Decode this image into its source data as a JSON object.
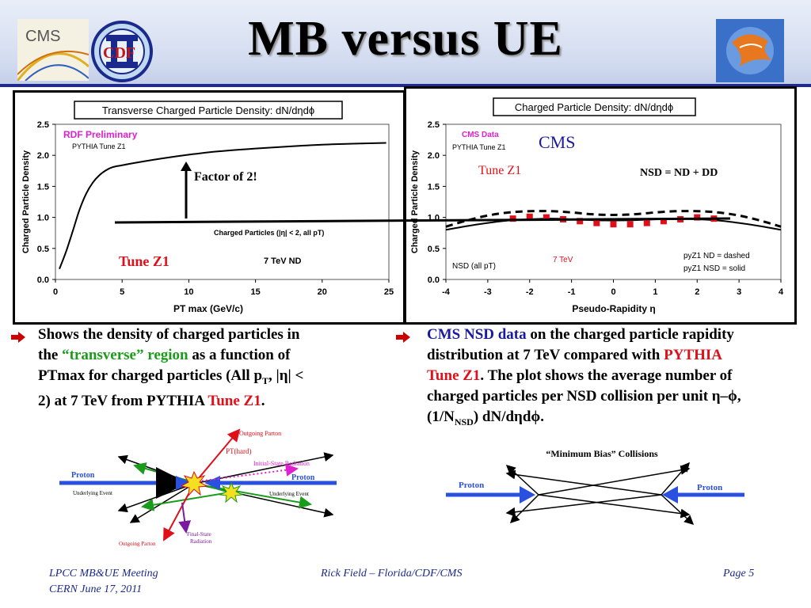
{
  "slide": {
    "title": "MB versus UE",
    "logos": {
      "cms": "CMS",
      "cdf": "CDF"
    }
  },
  "left_chart": {
    "type": "line",
    "title": "Transverse Charged Particle Density: dN/dηdϕ",
    "xlabel": "PT max (GeV/c)",
    "ylabel": "Charged Particle Density",
    "xlim": [
      0,
      25
    ],
    "ylim": [
      0.0,
      2.5
    ],
    "xticks": [
      "0",
      "5",
      "10",
      "15",
      "20",
      "25"
    ],
    "yticks": [
      "0.0",
      "0.5",
      "1.0",
      "1.5",
      "2.0",
      "2.5"
    ],
    "annotation_preliminary": "RDF Preliminary",
    "annotation_tune": "PYTHIA Tune Z1",
    "annotation_factor": "Factor of 2!",
    "annotation_cuts": "Charged Particles (|η| < 2, all pT)",
    "annotation_tune_big": "Tune Z1",
    "annotation_energy": "7 TeV ND",
    "series": [
      {
        "values_x": [
          0.3,
          0.8,
          1.3,
          1.8,
          2.3,
          2.8,
          3.3,
          3.8,
          4.3,
          5,
          6,
          8,
          10,
          12,
          15,
          18,
          21,
          24.8
        ],
        "values_y": [
          0.17,
          0.45,
          0.78,
          1.12,
          1.38,
          1.56,
          1.68,
          1.76,
          1.81,
          1.84,
          1.88,
          1.95,
          2.01,
          2.06,
          2.11,
          2.15,
          2.18,
          2.2
        ]
      }
    ]
  },
  "right_chart": {
    "type": "line",
    "title": "Charged Particle Density: dN/dηdϕ",
    "xlabel": "Pseudo-Rapidity η",
    "ylabel": "Charged Particle Density",
    "xlim": [
      -4,
      4
    ],
    "ylim": [
      0.0,
      2.5
    ],
    "xticks": [
      "-4",
      "-3",
      "-2",
      "-1",
      "0",
      "1",
      "2",
      "3",
      "4"
    ],
    "yticks": [
      "0.0",
      "0.5",
      "1.0",
      "1.5",
      "2.0",
      "2.5"
    ],
    "annotation_cms_data": "CMS Data",
    "annotation_tune": "PYTHIA Tune Z1",
    "annotation_cms_big": "CMS",
    "annotation_tune_big": "Tune Z1",
    "annotation_nsd_def": "NSD = ND + DD",
    "annotation_nsd_pt": "NSD (all pT)",
    "annotation_energy": "7 TeV",
    "legend_dashed": "pyZ1 ND = dashed",
    "legend_solid": "pyZ1 NSD = solid",
    "series": [
      {
        "style": "solid",
        "x": [
          -4,
          -3.5,
          -3,
          -2.5,
          -2,
          -1.5,
          -1,
          -0.5,
          0,
          0.5,
          1,
          1.5,
          2,
          2.5,
          3,
          3.5,
          4
        ],
        "y": [
          0.8,
          0.86,
          0.91,
          0.95,
          0.97,
          0.98,
          0.97,
          0.955,
          0.95,
          0.955,
          0.97,
          0.98,
          0.97,
          0.95,
          0.91,
          0.86,
          0.8
        ]
      },
      {
        "style": "dashed",
        "x": [
          -4,
          -3.5,
          -3,
          -2.5,
          -2,
          -1.5,
          -1,
          -0.5,
          0,
          0.5,
          1,
          1.5,
          2,
          2.5,
          3,
          3.5,
          4
        ],
        "y": [
          0.85,
          0.95,
          1.03,
          1.08,
          1.1,
          1.1,
          1.08,
          1.05,
          1.04,
          1.05,
          1.08,
          1.1,
          1.1,
          1.08,
          1.03,
          0.95,
          0.85
        ]
      },
      {
        "style": "points",
        "x": [
          -2.4,
          -2.0,
          -1.6,
          -1.2,
          -0.8,
          -0.4,
          0,
          0.4,
          0.8,
          1.2,
          1.6,
          2.0,
          2.4
        ],
        "y": [
          0.98,
          1.01,
          1.0,
          0.97,
          0.94,
          0.91,
          0.89,
          0.89,
          0.91,
          0.94,
          0.97,
          1.0,
          0.98
        ]
      }
    ]
  },
  "bullets": {
    "left_line1": "Shows the density of charged particles in",
    "left_line2a": "the ",
    "left_line2b": "“transverse” region",
    "left_line2c": " as a function of",
    "left_line3a": "PTmax for charged particles (All p",
    "left_line3sub": "T",
    "left_line3b": ", |η| <",
    "left_line4a": "2) at 7 TeV from PYTHIA ",
    "left_line4b": "Tune Z1",
    "left_line4c": ".",
    "right_line1a": "CMS NSD data",
    "right_line1b": " on the charged particle rapidity",
    "right_line2a": "distribution at 7 TeV compared with ",
    "right_line2b": "PYTHIA",
    "right_line3a": "Tune Z1",
    "right_line3b": ".  The plot shows the average number of",
    "right_line4": "charged particles per NSD collision per unit η–ϕ,",
    "right_line5a": "(1/N",
    "right_line5sub": "NSD",
    "right_line5b": ") dN/dηdϕ."
  },
  "diagram_left": {
    "outgoing_parton_top": "Outgoing Parton",
    "pt_hard": "PT(hard)",
    "isr": "Initial-State Radiation",
    "proton_left": "Proton",
    "proton_right": "Proton",
    "ue_left": "Underlying Event",
    "ue_right": "Underlying Event",
    "fsr_line1": "Final-State",
    "fsr_line2": "Radiation",
    "outgoing_parton_bottom": "Outgoing Parton"
  },
  "diagram_right": {
    "title": "“Minimum Bias” Collisions",
    "proton_left": "Proton",
    "proton_right": "Proton"
  },
  "footer": {
    "meeting": "LPCC MB&UE Meeting",
    "date": "CERN June 17, 2011",
    "author": "Rick Field – Florida/CDF/CMS",
    "page": "Page 5"
  },
  "colors": {
    "accent_blue": "#1f2a8c",
    "red": "#e0101a",
    "green": "#1a9c1a",
    "magenta": "#e020d0"
  }
}
